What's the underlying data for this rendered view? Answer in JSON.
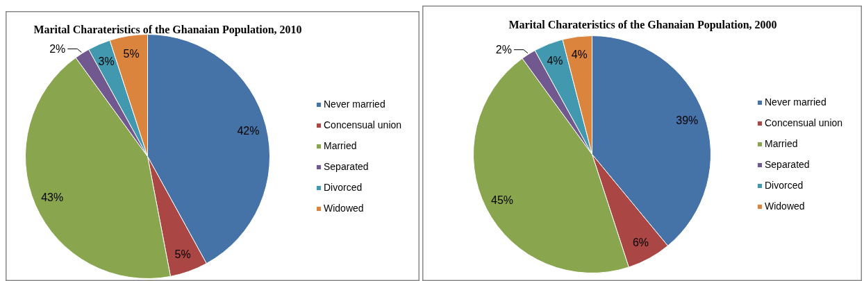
{
  "chart_data": [
    {
      "type": "pie",
      "title": "Marital Charateristics of the Ghanaian Population, 2010",
      "categories": [
        "Never married",
        "Concensual union",
        "Married",
        "Separated",
        "Divorced",
        "Widowed"
      ],
      "values": [
        42,
        5,
        43,
        2,
        3,
        5
      ],
      "value_labels": [
        "42%",
        "5%",
        "43%",
        "2%",
        "3%",
        "5%"
      ],
      "colors": [
        "#4572a7",
        "#aa4643",
        "#89a54e",
        "#71588f",
        "#4198af",
        "#db843d"
      ],
      "legend": "right"
    },
    {
      "type": "pie",
      "title": "Marital Charateristics of the Ghanaian Population, 2000",
      "categories": [
        "Never married",
        "Concensual union",
        "Married",
        "Separated",
        "Divorced",
        "Widowed"
      ],
      "values": [
        39,
        6,
        45,
        2,
        4,
        4
      ],
      "value_labels": [
        "39%",
        "6%",
        "45%",
        "2%",
        "4%",
        "4%"
      ],
      "colors": [
        "#4572a7",
        "#aa4643",
        "#89a54e",
        "#71588f",
        "#4198af",
        "#db843d"
      ],
      "legend": "right"
    }
  ]
}
